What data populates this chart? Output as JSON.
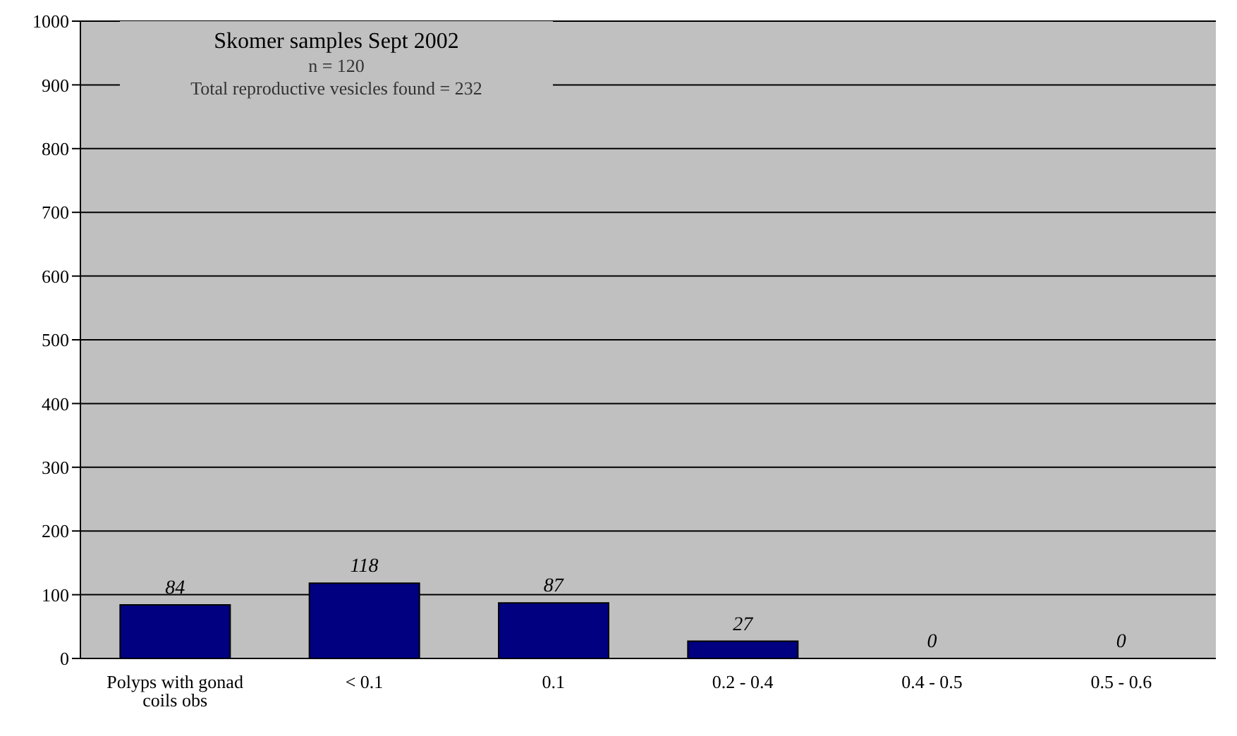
{
  "chart_data": {
    "type": "bar",
    "title": "Skomer samples Sept 2002",
    "subtitle": "n = 120",
    "annotations": [
      "Total reproductive vesicles found = 232"
    ],
    "categories": [
      "Polyps with gonad coils obs",
      "< 0.1",
      "0.1",
      "0.2 - 0.4",
      "0.4 - 0.5",
      "0.5 - 0.6"
    ],
    "values": [
      84,
      118,
      87,
      27,
      0,
      0
    ],
    "color": "#000080",
    "ylim": [
      0,
      1000
    ],
    "yticks": [
      0,
      100,
      200,
      300,
      400,
      500,
      600,
      700,
      800,
      900,
      1000
    ],
    "grid": "y",
    "data_labels": true
  }
}
